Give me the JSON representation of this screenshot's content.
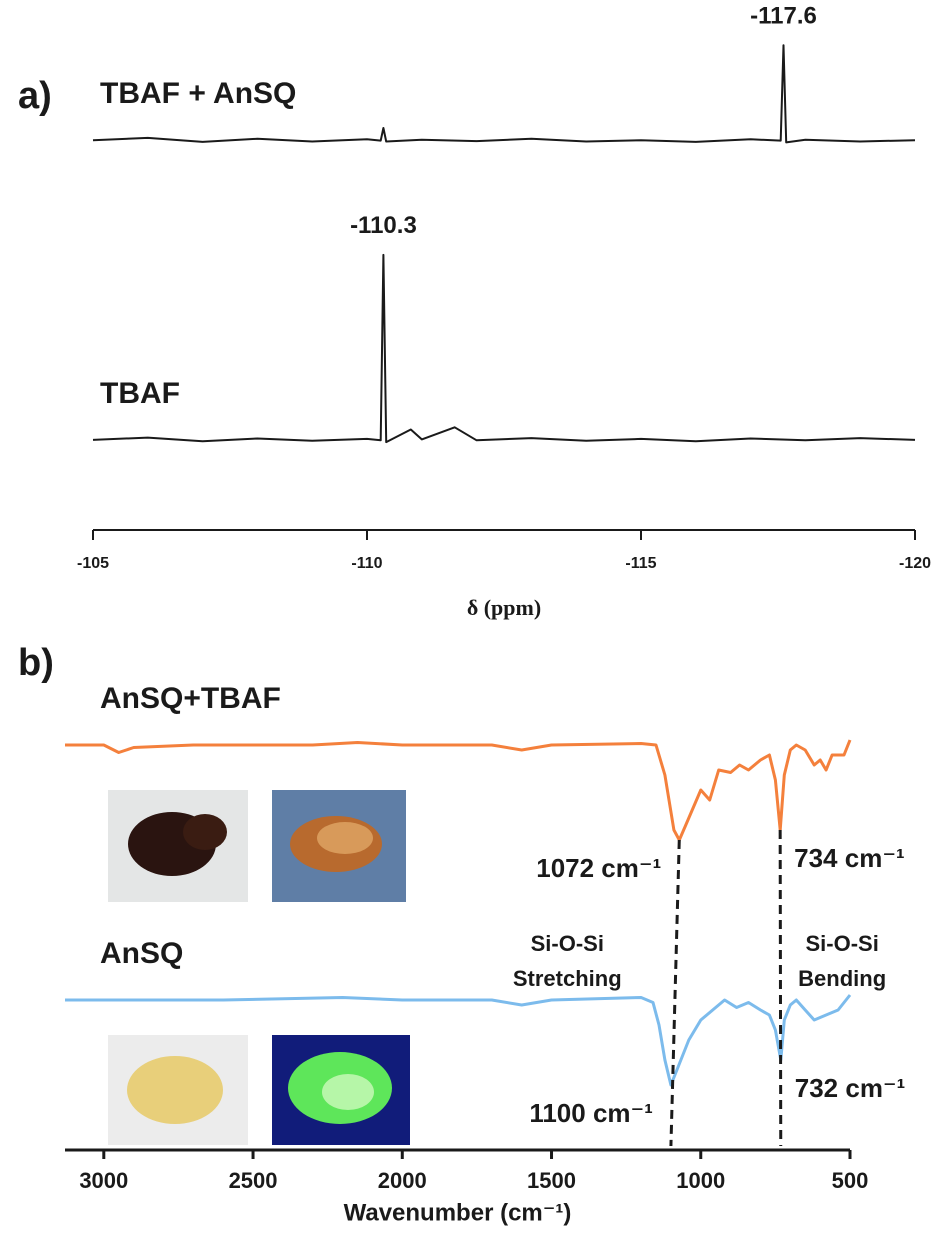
{
  "chart_data": [
    {
      "type": "line",
      "panel_label": "a)",
      "xlabel": "δ (ppm)",
      "xlim": [
        -105,
        -120
      ],
      "xticks": [
        -105,
        -110,
        -115,
        -120
      ],
      "ylim": [
        0,
        100
      ],
      "series": [
        {
          "name": "TBAF + AnSQ",
          "color": "#1a1a1a",
          "x": [
            -105,
            -106,
            -107,
            -108,
            -109,
            -110,
            -110.25,
            -110.3,
            -110.35,
            -111,
            -112,
            -113,
            -114,
            -115,
            -116,
            -117,
            -117.55,
            -117.6,
            -117.65,
            -118,
            -119,
            -120
          ],
          "values": [
            73.3,
            73.8,
            72.9,
            73.6,
            73.0,
            73.5,
            73.2,
            76,
            73.0,
            73.4,
            73.1,
            73.6,
            73.0,
            73.3,
            72.9,
            73.5,
            73.2,
            94.4,
            72.8,
            73.4,
            73.0,
            73.3
          ]
        },
        {
          "name": "TBAF",
          "color": "#1a1a1a",
          "x": [
            -105,
            -106,
            -107,
            -108,
            -109,
            -110,
            -110.25,
            -110.3,
            -110.35,
            -110.8,
            -111,
            -111.6,
            -112,
            -113,
            -114,
            -115,
            -116,
            -117,
            -118,
            -119,
            -120
          ],
          "values": [
            6.7,
            7.2,
            6.4,
            7.0,
            6.5,
            6.9,
            6.6,
            47.8,
            6.2,
            9,
            6.8,
            9.5,
            6.6,
            7.1,
            6.5,
            6.9,
            6.4,
            7.0,
            6.6,
            7.1,
            6.7
          ]
        }
      ]
    },
    {
      "type": "line",
      "panel_label": "b)",
      "xlabel": "Wavenumber (cm⁻¹)",
      "xlim": [
        3130,
        500
      ],
      "xticks": [
        3000,
        2500,
        2000,
        1500,
        1000,
        500
      ],
      "ylim": [
        0,
        100
      ],
      "annotations": [
        {
          "lines": [
            "Si-O-Si",
            "Stretching"
          ]
        },
        {
          "lines": [
            "Si-O-Si",
            "Bending"
          ]
        }
      ],
      "series": [
        {
          "name": "AnSQ+TBAF",
          "color": "#f4803c",
          "x": [
            3130,
            3000,
            2950,
            2900,
            2700,
            2300,
            2150,
            2000,
            1700,
            1600,
            1500,
            1200,
            1150,
            1120,
            1090,
            1072,
            1050,
            1000,
            970,
            940,
            900,
            870,
            840,
            800,
            770,
            750,
            734,
            720,
            700,
            680,
            650,
            620,
            600,
            580,
            560,
            520,
            500
          ],
          "values": [
            81,
            81,
            79.5,
            80.5,
            81,
            81,
            81.5,
            81,
            81,
            80,
            81,
            81.3,
            81,
            75,
            64,
            62,
            65,
            72,
            70,
            76,
            75.5,
            77,
            76,
            78,
            79,
            74,
            64,
            75,
            80,
            81,
            80,
            77,
            78,
            76,
            79,
            79,
            82
          ],
          "peaks": [
            {
              "value": 1072,
              "label": "1072 cm⁻¹"
            },
            {
              "value": 734,
              "label": "734 cm⁻¹"
            }
          ]
        },
        {
          "name": "AnSQ",
          "color": "#7cbbec",
          "x": [
            3130,
            3000,
            2600,
            2200,
            2000,
            1700,
            1600,
            1500,
            1200,
            1160,
            1140,
            1120,
            1100,
            1080,
            1040,
            1000,
            960,
            920,
            880,
            840,
            800,
            770,
            750,
            732,
            720,
            700,
            680,
            650,
            620,
            580,
            540,
            500
          ],
          "values": [
            30,
            30,
            30,
            30.5,
            30,
            30,
            29,
            30,
            30.5,
            29.5,
            25,
            18,
            13,
            16,
            22,
            26,
            28,
            30,
            28.5,
            29.5,
            28,
            27,
            24,
            18,
            26,
            29,
            30,
            28,
            26,
            27,
            28,
            31
          ],
          "peaks": [
            {
              "value": 1100,
              "label": "1100 cm⁻¹"
            },
            {
              "value": 732,
              "label": "732 cm⁻¹"
            }
          ]
        }
      ]
    }
  ]
}
